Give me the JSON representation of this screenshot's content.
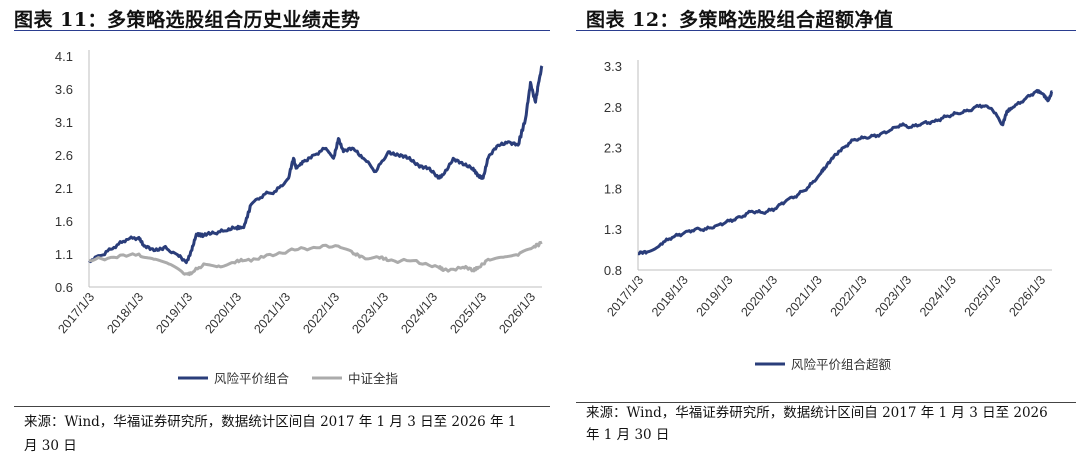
{
  "left": {
    "title": "图表 11：多策略选股组合历史业绩走势",
    "source_line1": "来源：Wind，华福证券研究所，数据统计区间自 2017 年 1 月 3 日至 2026 年 1",
    "source_line2": "月 30 日"
  },
  "right": {
    "title": "图表 12：多策略选股组合超额净值",
    "source_line1": "来源：Wind，华福证券研究所，数据统计区间自 2017 年 1 月 3 日至 2026",
    "source_line2": "年 1 月 30 日"
  },
  "colors": {
    "navy": "#2a3d7a",
    "gray": "#ababab",
    "axis": "#bfbfbf"
  },
  "chart_data": [
    {
      "type": "line",
      "title": "",
      "xlabel": "",
      "ylabel": "",
      "x_ticks": [
        "2017/1/3",
        "2018/1/3",
        "2019/1/3",
        "2020/1/3",
        "2021/1/3",
        "2022/1/3",
        "2023/1/3",
        "2024/1/3",
        "2025/1/3",
        "2026/1/3"
      ],
      "y_ticks": [
        "0.6",
        "1.1",
        "1.6",
        "2.1",
        "2.6",
        "3.1",
        "3.6",
        "4.1"
      ],
      "ylim": [
        0.6,
        4.1
      ],
      "xlim": [
        2017.0,
        2026.08
      ],
      "grid": false,
      "legend_position": "bottom",
      "series": [
        {
          "name": "风险平价组合",
          "color": "#2a3d7a",
          "x": [
            2017.0,
            2017.25,
            2017.5,
            2017.75,
            2018.0,
            2018.1,
            2018.3,
            2018.5,
            2018.75,
            2018.95,
            2019.05,
            2019.15,
            2019.3,
            2019.5,
            2019.75,
            2019.95,
            2020.1,
            2020.25,
            2020.5,
            2020.75,
            2021.0,
            2021.1,
            2021.15,
            2021.3,
            2021.5,
            2021.75,
            2021.9,
            2022.0,
            2022.1,
            2022.3,
            2022.5,
            2022.75,
            2023.0,
            2023.2,
            2023.4,
            2023.6,
            2023.8,
            2024.0,
            2024.1,
            2024.3,
            2024.5,
            2024.7,
            2024.8,
            2024.9,
            2025.0,
            2025.2,
            2025.4,
            2025.6,
            2025.75,
            2025.85,
            2025.95,
            2026.0,
            2026.08
          ],
          "y": [
            1.0,
            1.08,
            1.2,
            1.32,
            1.35,
            1.22,
            1.15,
            1.2,
            1.1,
            0.97,
            1.15,
            1.4,
            1.38,
            1.42,
            1.45,
            1.5,
            1.5,
            1.85,
            2.0,
            2.05,
            2.25,
            2.55,
            2.4,
            2.5,
            2.6,
            2.7,
            2.55,
            2.85,
            2.65,
            2.7,
            2.55,
            2.35,
            2.65,
            2.6,
            2.55,
            2.45,
            2.4,
            2.25,
            2.3,
            2.55,
            2.45,
            2.4,
            2.3,
            2.25,
            2.55,
            2.75,
            2.8,
            2.75,
            3.15,
            3.7,
            3.4,
            3.65,
            3.95
          ]
        },
        {
          "name": "中证全指",
          "color": "#ababab",
          "x": [
            2017.0,
            2017.5,
            2018.0,
            2018.3,
            2018.6,
            2018.9,
            2019.05,
            2019.3,
            2019.6,
            2019.9,
            2020.1,
            2020.5,
            2021.0,
            2021.5,
            2022.0,
            2022.3,
            2022.5,
            2022.8,
            2023.0,
            2023.5,
            2024.0,
            2024.1,
            2024.5,
            2024.7,
            2024.8,
            2025.0,
            2025.3,
            2025.6,
            2025.9,
            2026.08
          ],
          "y": [
            1.0,
            1.05,
            1.1,
            1.02,
            0.95,
            0.8,
            0.8,
            0.95,
            0.92,
            0.97,
            1.0,
            1.05,
            1.15,
            1.2,
            1.22,
            1.1,
            1.05,
            1.05,
            1.0,
            1.0,
            0.9,
            0.85,
            0.9,
            0.85,
            0.9,
            1.02,
            1.05,
            1.08,
            1.2,
            1.28
          ]
        }
      ]
    },
    {
      "type": "line",
      "title": "",
      "xlabel": "",
      "ylabel": "",
      "x_ticks": [
        "2017/1/3",
        "2018/1/3",
        "2019/1/3",
        "2020/1/3",
        "2021/1/3",
        "2022/1/3",
        "2023/1/3",
        "2024/1/3",
        "2025/1/3",
        "2026/1/3"
      ],
      "y_ticks": [
        "0.8",
        "1.3",
        "1.8",
        "2.3",
        "2.8",
        "3.3"
      ],
      "ylim": [
        0.8,
        3.3
      ],
      "xlim": [
        2017.0,
        2026.08
      ],
      "grid": false,
      "legend_position": "bottom",
      "series": [
        {
          "name": "风险平价组合超额",
          "color": "#2a3d7a",
          "x": [
            2017.0,
            2017.2,
            2017.5,
            2017.75,
            2018.0,
            2018.25,
            2018.5,
            2018.75,
            2019.0,
            2019.25,
            2019.5,
            2019.75,
            2020.0,
            2020.25,
            2020.5,
            2020.75,
            2021.0,
            2021.1,
            2021.3,
            2021.5,
            2021.75,
            2022.0,
            2022.25,
            2022.5,
            2022.75,
            2023.0,
            2023.25,
            2023.5,
            2023.75,
            2024.0,
            2024.25,
            2024.5,
            2024.75,
            2025.0,
            2025.1,
            2025.25,
            2025.5,
            2025.75,
            2025.9,
            2026.0,
            2026.08
          ],
          "y": [
            1.0,
            1.02,
            1.12,
            1.2,
            1.25,
            1.3,
            1.3,
            1.35,
            1.4,
            1.45,
            1.52,
            1.5,
            1.55,
            1.65,
            1.72,
            1.82,
            1.98,
            2.05,
            2.2,
            2.3,
            2.4,
            2.42,
            2.45,
            2.5,
            2.58,
            2.55,
            2.6,
            2.62,
            2.68,
            2.72,
            2.75,
            2.82,
            2.78,
            2.58,
            2.75,
            2.8,
            2.9,
            3.0,
            2.95,
            2.88,
            2.98
          ]
        }
      ]
    }
  ]
}
